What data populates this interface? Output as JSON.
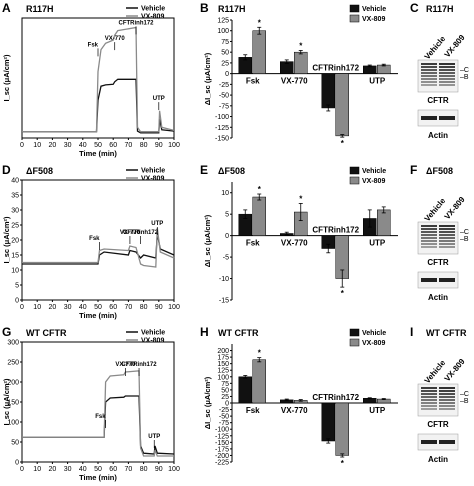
{
  "colors": {
    "vehicle": "#111111",
    "vx809": "#8a8a8a",
    "axis": "#000000"
  },
  "chart_data": [
    {
      "panel": "A",
      "row": 0,
      "type": "line",
      "title": "R117H",
      "xlabel": "Time (min)",
      "ylabel": "I_sc (μA/cm²)",
      "xlim": [
        0,
        100
      ],
      "ylim": [
        -5,
        185
      ],
      "x_ticks": [
        0,
        10,
        20,
        30,
        40,
        50,
        60,
        70,
        80,
        90,
        100
      ],
      "annotations": [
        "Fsk",
        "VX-770",
        "CFTRinh172",
        "UTP"
      ],
      "series": [
        {
          "name": "Vehicle",
          "color": "#111111",
          "points": [
            [
              0,
              5
            ],
            [
              49,
              5
            ],
            [
              50,
              55
            ],
            [
              52,
              77
            ],
            [
              55,
              79
            ],
            [
              60,
              80
            ],
            [
              61,
              84
            ],
            [
              63,
              88
            ],
            [
              75,
              88
            ],
            [
              76,
              6
            ],
            [
              78,
              3
            ],
            [
              90,
              3
            ],
            [
              90.5,
              25
            ],
            [
              92,
              8
            ],
            [
              100,
              6
            ]
          ]
        },
        {
          "name": "VX-809",
          "color": "#8a8a8a",
          "points": [
            [
              0,
              5
            ],
            [
              49,
              5
            ],
            [
              50,
              100
            ],
            [
              52,
              135
            ],
            [
              55,
              145
            ],
            [
              60,
              150
            ],
            [
              61,
              158
            ],
            [
              63,
              165
            ],
            [
              75,
              170
            ],
            [
              76,
              12
            ],
            [
              78,
              5
            ],
            [
              90,
              5
            ],
            [
              90.5,
              38
            ],
            [
              92,
              12
            ],
            [
              100,
              7
            ]
          ]
        }
      ],
      "legend": [
        "Vehicle",
        "VX-809"
      ],
      "legend_position": "top-right"
    },
    {
      "panel": "B",
      "row": 0,
      "type": "bar",
      "title": "R117H",
      "ylabel": "ΔI_sc (μA/cm²)",
      "ylim": [
        -150,
        125
      ],
      "y_ticks": [
        125,
        100,
        75,
        50,
        25,
        0,
        -25,
        -50,
        -75,
        -100,
        -125,
        -150
      ],
      "categories": [
        "Fsk",
        "VX-770",
        "CFTRinh172",
        "UTP"
      ],
      "series": [
        {
          "name": "Vehicle",
          "color": "#111111",
          "values": [
            38,
            28,
            -80,
            18
          ],
          "errors": [
            6,
            4,
            7,
            2
          ]
        },
        {
          "name": "VX-809",
          "color": "#8a8a8a",
          "values": [
            100,
            50,
            -145,
            20
          ],
          "errors": [
            8,
            4,
            3,
            2
          ]
        }
      ],
      "significance": [
        "*",
        "*",
        "*",
        ""
      ],
      "legend": [
        "Vehicle",
        "VX-809"
      ],
      "legend_position": "top-right"
    },
    {
      "panel": "D",
      "row": 1,
      "type": "line",
      "title": "ΔF508",
      "xlabel": "Time (min)",
      "ylabel": "I_sc (μA/cm²)",
      "xlim": [
        0,
        100
      ],
      "ylim": [
        0,
        40
      ],
      "x_ticks": [
        0,
        10,
        20,
        30,
        40,
        50,
        60,
        70,
        80,
        90,
        100
      ],
      "y_ticks": [
        0,
        5,
        10,
        15,
        20,
        25,
        30,
        35,
        40
      ],
      "annotations": [
        "Fsk",
        "VX-770",
        "CFTRinh172",
        "UTP"
      ],
      "series": [
        {
          "name": "Vehicle",
          "color": "#111111",
          "points": [
            [
              0,
              12
            ],
            [
              50,
              12
            ],
            [
              51,
              15
            ],
            [
              54,
              16
            ],
            [
              70,
              15
            ],
            [
              71,
              16.5
            ],
            [
              75,
              16
            ],
            [
              78,
              14
            ],
            [
              80,
              15
            ],
            [
              88,
              14
            ],
            [
              89,
              22
            ],
            [
              91,
              17
            ],
            [
              100,
              15
            ]
          ]
        },
        {
          "name": "VX-809",
          "color": "#8a8a8a",
          "points": [
            [
              0,
              12.5
            ],
            [
              50,
              12.5
            ],
            [
              51,
              16.5
            ],
            [
              54,
              17
            ],
            [
              70,
              16.5
            ],
            [
              71,
              18
            ],
            [
              75,
              17.5
            ],
            [
              78,
              12
            ],
            [
              80,
              11.5
            ],
            [
              88,
              11
            ],
            [
              89,
              24
            ],
            [
              91,
              16
            ],
            [
              100,
              14
            ]
          ]
        }
      ],
      "legend": [
        "Vehicle",
        "VX-809"
      ],
      "legend_position": "top-right"
    },
    {
      "panel": "E",
      "row": 1,
      "type": "bar",
      "title": "ΔF508",
      "ylabel": "ΔI_sc (μA/cm²)",
      "ylim": [
        -15,
        12.5
      ],
      "y_ticks": [
        10,
        5,
        0,
        -5,
        -10,
        -15
      ],
      "categories": [
        "Fsk",
        "VX-770",
        "CFTRinh172",
        "UTP"
      ],
      "series": [
        {
          "name": "Vehicle",
          "color": "#111111",
          "values": [
            5,
            0.5,
            -3,
            4
          ],
          "errors": [
            1,
            0.3,
            1,
            2
          ]
        },
        {
          "name": "VX-809",
          "color": "#8a8a8a",
          "values": [
            9,
            5.5,
            -10,
            6
          ],
          "errors": [
            0.7,
            2,
            2,
            0.7
          ]
        }
      ],
      "significance": [
        "*",
        "*",
        "*",
        ""
      ],
      "legend": [
        "Vehicle",
        "VX-809"
      ],
      "legend_position": "top-right"
    },
    {
      "panel": "G",
      "row": 2,
      "type": "line",
      "title": "WT CFTR",
      "xlabel": "Time (min)",
      "ylabel": "I_sc (μA/cm²)",
      "xlim": [
        0,
        100
      ],
      "ylim": [
        0,
        300
      ],
      "x_ticks": [
        0,
        10,
        20,
        30,
        40,
        50,
        60,
        70,
        80,
        90,
        100
      ],
      "y_ticks": [
        0,
        50,
        100,
        150,
        200,
        250,
        300
      ],
      "annotations": [
        "Fsk",
        "VX-770",
        "CFTRinh172",
        "UTP"
      ],
      "series": [
        {
          "name": "Vehicle",
          "color": "#111111",
          "points": [
            [
              0,
              62
            ],
            [
              54,
              62
            ],
            [
              55,
              150
            ],
            [
              58,
              160
            ],
            [
              67,
              162
            ],
            [
              68,
              165
            ],
            [
              77,
              165
            ],
            [
              78,
              40
            ],
            [
              80,
              22
            ],
            [
              87,
              20
            ],
            [
              87.5,
              40
            ],
            [
              89,
              22
            ],
            [
              100,
              20
            ]
          ]
        },
        {
          "name": "VX-809",
          "color": "#8a8a8a",
          "points": [
            [
              0,
              62
            ],
            [
              54,
              62
            ],
            [
              55,
              200
            ],
            [
              58,
              215
            ],
            [
              67,
              218
            ],
            [
              68,
              225
            ],
            [
              77,
              228
            ],
            [
              78,
              35
            ],
            [
              80,
              15
            ],
            [
              87,
              15
            ],
            [
              87.5,
              30
            ],
            [
              89,
              15
            ],
            [
              100,
              15
            ]
          ]
        }
      ],
      "legend": [
        "Vehicle",
        "VX-809"
      ],
      "legend_position": "top-right"
    },
    {
      "panel": "H",
      "row": 2,
      "type": "bar",
      "title": "WT CFTR",
      "ylabel": "ΔI_sc (μA/cm²)",
      "ylim": [
        -225,
        225
      ],
      "y_ticks": [
        200,
        175,
        150,
        125,
        100,
        75,
        50,
        25,
        0,
        -25,
        -50,
        -75,
        -100,
        -125,
        -150,
        -175,
        -200,
        -225
      ],
      "categories": [
        "Fsk",
        "VX-770",
        "CFTRinh172",
        "UTP"
      ],
      "series": [
        {
          "name": "Vehicle",
          "color": "#111111",
          "values": [
            100,
            12,
            -145,
            18
          ],
          "errors": [
            5,
            3,
            8,
            2
          ]
        },
        {
          "name": "VX-809",
          "color": "#8a8a8a",
          "values": [
            165,
            10,
            -200,
            15
          ],
          "errors": [
            8,
            3,
            6,
            2
          ]
        }
      ],
      "significance": [
        "*",
        "",
        "*",
        ""
      ],
      "legend": [
        "Vehicle",
        "VX-809"
      ],
      "legend_position": "top-right"
    }
  ],
  "labels": {
    "A": "A",
    "B": "B",
    "C": "C",
    "D": "D",
    "E": "E",
    "F": "F",
    "G": "G",
    "H": "H",
    "I": "I"
  },
  "blots": [
    {
      "panel": "C",
      "title": "R117H",
      "lanes": [
        "Vehicle",
        "VX-809"
      ],
      "band_labels": [
        "C",
        "B"
      ],
      "blot1": "CFTR",
      "blot2": "Actin"
    },
    {
      "panel": "F",
      "title": "ΔF508",
      "lanes": [
        "Vehicle",
        "VX-809"
      ],
      "band_labels": [
        "C",
        "B"
      ],
      "blot1": "CFTR",
      "blot2": "Actin"
    },
    {
      "panel": "I",
      "title": "WT CFTR",
      "lanes": [
        "Vehicle",
        "VX-809"
      ],
      "band_labels": [
        "C",
        "B"
      ],
      "blot1": "CFTR",
      "blot2": "Actin"
    }
  ]
}
